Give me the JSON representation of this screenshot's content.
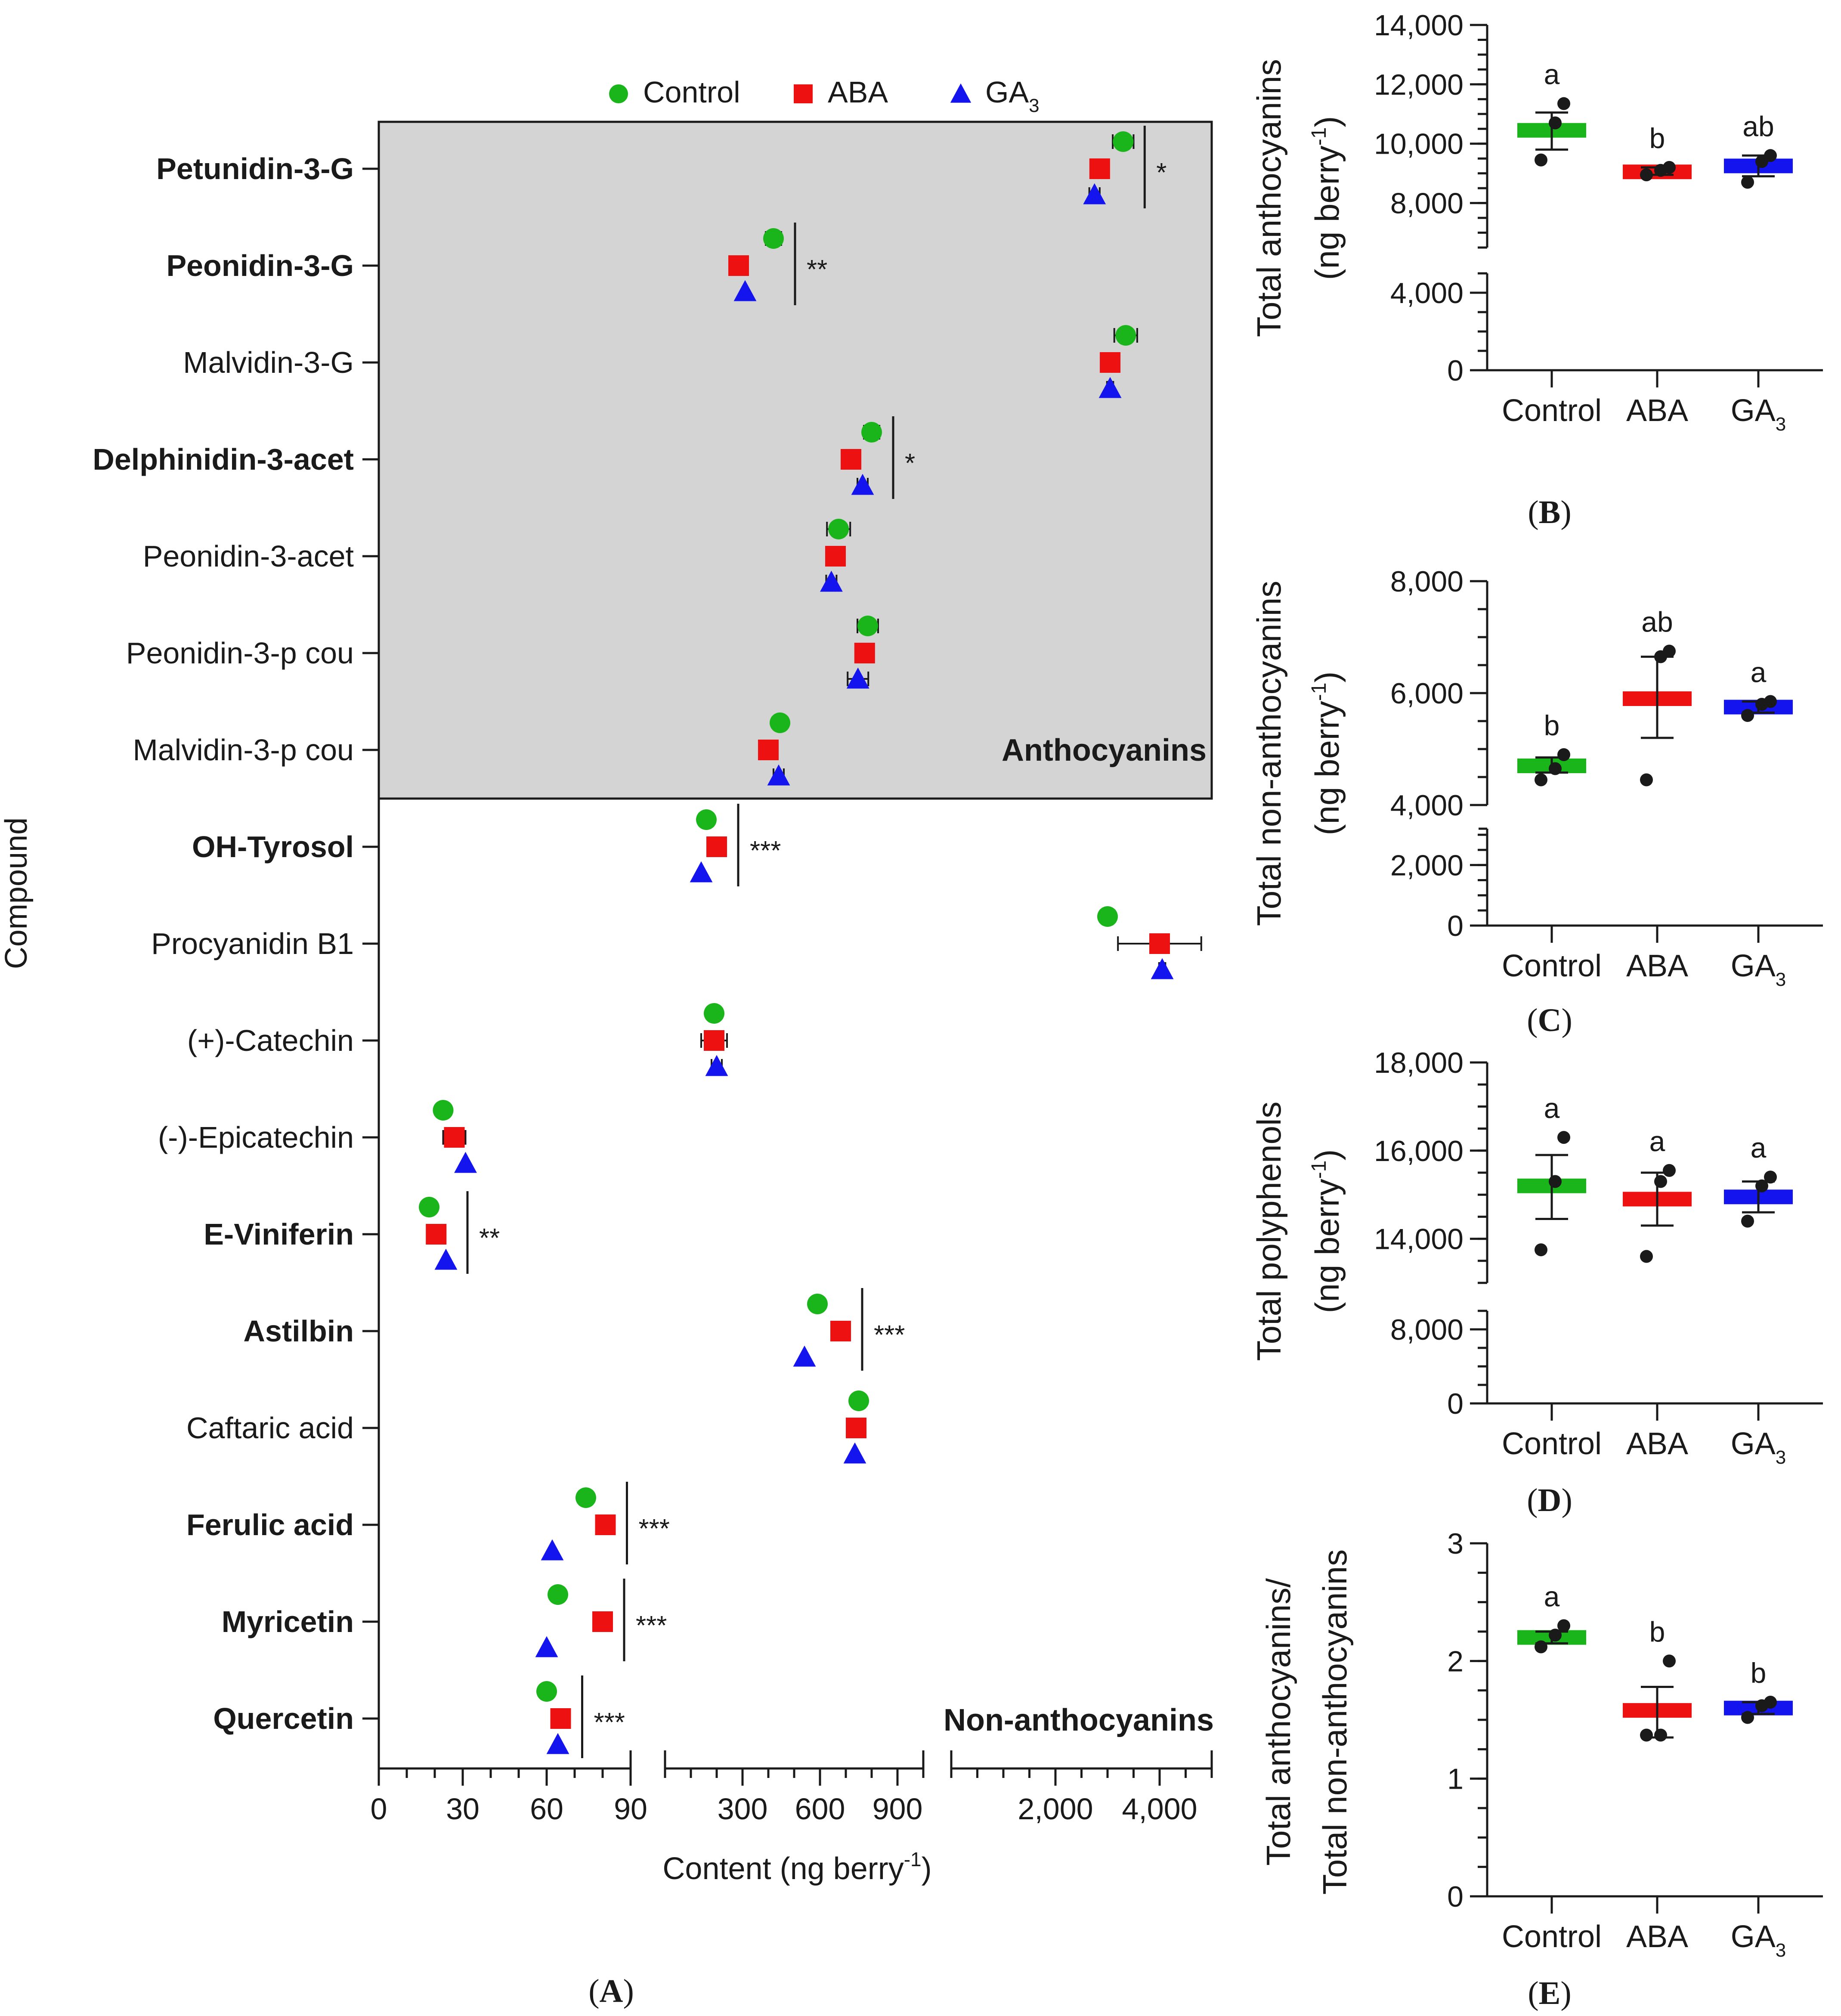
{
  "colors": {
    "control": "#1ab51a",
    "aba": "#ee1111",
    "ga3": "#1414ee",
    "shade": "#d4d4d4"
  },
  "legend": {
    "control": "Control",
    "aba": "ABA",
    "ga3_base": "GA",
    "ga3_sub": "3"
  },
  "chart_data": [
    {
      "panel": "A",
      "type": "scatter",
      "orientation": "horizontal",
      "panel_label": "(A)",
      "panel_label_parts": [
        "(",
        "A",
        ")"
      ],
      "ylabel": "Compound",
      "xlabel": "Content (ng berry-1)",
      "xlabel_parts": {
        "main": "Content (ng berry",
        "sup": "-1",
        "end": ")"
      },
      "x_axis_segments": [
        {
          "range": [
            0,
            90
          ],
          "ticks": [
            0,
            30,
            60,
            90
          ],
          "tick_labels": [
            "0",
            "30",
            "60",
            "90"
          ]
        },
        {
          "range": [
            0,
            1000
          ],
          "ticks": [
            300,
            600,
            900
          ],
          "tick_labels": [
            "300",
            "600",
            "900"
          ]
        },
        {
          "range": [
            0,
            5000
          ],
          "ticks": [
            2000,
            4000
          ],
          "tick_labels": [
            "2,000",
            "4,000"
          ]
        }
      ],
      "groups": [
        {
          "name": "Anthocyanins",
          "shaded": true,
          "compounds": [
            {
              "name": "Petunidin-3-G",
              "bold": true,
              "sig": "*",
              "seg": 2,
              "control": 3300,
              "aba": 2850,
              "ga3": 2750,
              "err": [
                200,
                60,
                100
              ]
            },
            {
              "name": "Peonidin-3-G",
              "bold": true,
              "sig": "**",
              "seg": 1,
              "control": 420,
              "aba": 285,
              "ga3": 310,
              "err": [
                30,
                0,
                0
              ]
            },
            {
              "name": "Malvidin-3-G",
              "bold": false,
              "sig": "",
              "seg": 2,
              "control": 3350,
              "aba": 3050,
              "ga3": 3050,
              "err": [
                220,
                60,
                60
              ]
            },
            {
              "name": "Delphinidin-3-acet",
              "bold": true,
              "sig": "*",
              "seg": 1,
              "control": 800,
              "aba": 720,
              "ga3": 765,
              "err": [
                30,
                0,
                20
              ]
            },
            {
              "name": "Peonidin-3-acet",
              "bold": false,
              "sig": "",
              "seg": 1,
              "control": 672,
              "aba": 660,
              "ga3": 644,
              "err": [
                45,
                0,
                20
              ]
            },
            {
              "name": "Peonidin-3-p cou",
              "bold": false,
              "sig": "",
              "seg": 1,
              "control": 785,
              "aba": 773,
              "ga3": 747,
              "err": [
                40,
                0,
                40
              ]
            },
            {
              "name": "Malvidin-3-p cou",
              "bold": false,
              "sig": "",
              "seg": 1,
              "control": 445,
              "aba": 400,
              "ga3": 440,
              "err": [
                20,
                0,
                20
              ]
            }
          ]
        },
        {
          "name": "Non-anthocyanins",
          "shaded": false,
          "compounds": [
            {
              "name": "OH-Tyrosol",
              "bold": true,
              "sig": "***",
              "seg": 1,
              "control": 160,
              "aba": 200,
              "ga3": 140,
              "err": [
                0,
                0,
                0
              ]
            },
            {
              "name": "Procyanidin B1",
              "bold": false,
              "sig": "",
              "seg": 2,
              "control": 3000,
              "aba": 4000,
              "ga3": 4050,
              "err": [
                80,
                800,
                60
              ]
            },
            {
              "name": "(+)-Catechin",
              "bold": false,
              "sig": "",
              "seg": 1,
              "control": 190,
              "aba": 190,
              "ga3": 200,
              "err": [
                0,
                50,
                20
              ]
            },
            {
              "name": "(-)-Epicatechin",
              "bold": false,
              "sig": "",
              "seg": 0,
              "control": 23,
              "aba": 27,
              "ga3": 31,
              "err": [
                0,
                4,
                0
              ]
            },
            {
              "name": "E-Viniferin",
              "bold": true,
              "sig": "**",
              "seg": 0,
              "control": 18,
              "aba": 20.5,
              "ga3": 24,
              "err": [
                0,
                0,
                0
              ]
            },
            {
              "name": "Astilbin",
              "bold": true,
              "sig": "***",
              "seg": 1,
              "control": 590,
              "aba": 680,
              "ga3": 540,
              "err": [
                0,
                0,
                0
              ]
            },
            {
              "name": "Caftaric acid",
              "bold": false,
              "sig": "",
              "seg": 1,
              "control": 750,
              "aba": 740,
              "ga3": 735,
              "err": [
                20,
                0,
                0
              ]
            },
            {
              "name": "Ferulic acid",
              "bold": true,
              "sig": "***",
              "seg": 0,
              "control": 74,
              "aba": 81,
              "ga3": 62,
              "err": [
                2,
                0,
                0
              ]
            },
            {
              "name": "Myricetin",
              "bold": true,
              "sig": "***",
              "seg": 0,
              "control": 64,
              "aba": 80,
              "ga3": 60,
              "err": [
                0,
                0,
                0
              ]
            },
            {
              "name": "Quercetin",
              "bold": true,
              "sig": "***",
              "seg": 0,
              "control": 60,
              "aba": 65,
              "ga3": 64,
              "err": [
                0,
                0,
                0
              ]
            }
          ]
        }
      ]
    },
    {
      "panel": "B",
      "type": "scatter",
      "panel_label": "(B)",
      "panel_label_parts": [
        "(",
        "B",
        ")"
      ],
      "ylabel_lines": [
        "Total anthocyanins",
        "(ng berry-1)"
      ],
      "ylabel_parts": {
        "line1": "Total anthocyanins",
        "main": "(ng berry",
        "sup": "-1",
        "end": ")"
      },
      "categories": [
        "Control",
        "ABA",
        "GA3"
      ],
      "category_parts": [
        {
          "base": "Control",
          "sub": ""
        },
        {
          "base": "ABA",
          "sub": ""
        },
        {
          "base": "GA",
          "sub": "3"
        }
      ],
      "broken_y": {
        "lower": [
          0,
          5000
        ],
        "upper": [
          6500,
          14000
        ],
        "lower_ticks": [
          0,
          4000
        ],
        "lower_tick_labels": [
          "0",
          "4,000"
        ],
        "upper_ticks": [
          8000,
          10000,
          12000,
          14000
        ],
        "upper_tick_labels": [
          "8,000",
          "10,000",
          "12,000",
          "14,000"
        ]
      },
      "means": [
        10450,
        9050,
        9250
      ],
      "errors": [
        [
          9800,
          11050
        ],
        [
          8950,
          9200
        ],
        [
          8900,
          9600
        ]
      ],
      "points": [
        [
          9450,
          10700,
          11350
        ],
        [
          8950,
          9100,
          9200
        ],
        [
          8700,
          9400,
          9600
        ]
      ],
      "letters": [
        "a",
        "b",
        "ab"
      ]
    },
    {
      "panel": "C",
      "type": "scatter",
      "panel_label": "(C)",
      "panel_label_parts": [
        "(",
        "C",
        ")"
      ],
      "ylabel_lines": [
        "Total non-anthocyanins",
        "(ng berry-1)"
      ],
      "ylabel_parts": {
        "line1": "Total non-anthocyanins",
        "main": "(ng berry",
        "sup": "-1",
        "end": ")"
      },
      "categories": [
        "Control",
        "ABA",
        "GA3"
      ],
      "category_parts": [
        {
          "base": "Control",
          "sub": ""
        },
        {
          "base": "ABA",
          "sub": ""
        },
        {
          "base": "GA",
          "sub": "3"
        }
      ],
      "broken_y": {
        "lower": [
          0,
          3200
        ],
        "upper": [
          4000,
          8000
        ],
        "lower_ticks": [
          0,
          2000
        ],
        "lower_tick_labels": [
          "0",
          "2,000"
        ],
        "upper_ticks": [
          4000,
          6000,
          8000
        ],
        "upper_tick_labels": [
          "4,000",
          "6,000",
          "8,000"
        ]
      },
      "means": [
        4700,
        5900,
        5750
      ],
      "errors": [
        [
          4580,
          4850
        ],
        [
          5200,
          6650
        ],
        [
          5650,
          5850
        ]
      ],
      "points": [
        [
          4450,
          4650,
          4900
        ],
        [
          4450,
          6650,
          6750
        ],
        [
          5600,
          5800,
          5850
        ]
      ],
      "letters": [
        "b",
        "ab",
        "a"
      ]
    },
    {
      "panel": "D",
      "type": "scatter",
      "panel_label": "(D)",
      "panel_label_parts": [
        "(",
        "D",
        ")"
      ],
      "ylabel_lines": [
        "Total polyphenols",
        "(ng berry-1)"
      ],
      "ylabel_parts": {
        "line1": "Total polyphenols",
        "main": "(ng berry",
        "sup": "-1",
        "end": ")"
      },
      "categories": [
        "Control",
        "ABA",
        "GA3"
      ],
      "category_parts": [
        {
          "base": "Control",
          "sub": ""
        },
        {
          "base": "ABA",
          "sub": ""
        },
        {
          "base": "GA",
          "sub": "3"
        }
      ],
      "broken_y": {
        "lower": [
          0,
          10000
        ],
        "upper": [
          13000,
          18000
        ],
        "lower_ticks": [
          0,
          8000
        ],
        "lower_tick_labels": [
          "0",
          "8,000"
        ],
        "upper_ticks": [
          14000,
          16000,
          18000
        ],
        "upper_tick_labels": [
          "14,000",
          "16,000",
          "18,000"
        ]
      },
      "means": [
        15200,
        14900,
        14950
      ],
      "errors": [
        [
          14450,
          15900
        ],
        [
          14300,
          15500
        ],
        [
          14600,
          15300
        ]
      ],
      "points": [
        [
          13750,
          15300,
          16300
        ],
        [
          13600,
          15300,
          15550
        ],
        [
          14400,
          15200,
          15400
        ]
      ],
      "letters": [
        "a",
        "a",
        "a"
      ]
    },
    {
      "panel": "E",
      "type": "scatter",
      "panel_label": "(E)",
      "panel_label_parts": [
        "(",
        "E",
        ")"
      ],
      "ylabel_lines": [
        "Total anthocyanins/",
        "Total non-anthocyanins"
      ],
      "categories": [
        "Control",
        "ABA",
        "GA3"
      ],
      "category_parts": [
        {
          "base": "Control",
          "sub": ""
        },
        {
          "base": "ABA",
          "sub": ""
        },
        {
          "base": "GA",
          "sub": "3"
        }
      ],
      "ylim": [
        0,
        3
      ],
      "yticks": [
        0,
        1,
        2,
        3
      ],
      "ytick_labels": [
        "0",
        "1",
        "2",
        "3"
      ],
      "means": [
        2.2,
        1.58,
        1.6
      ],
      "errors": [
        [
          2.15,
          2.25
        ],
        [
          1.35,
          1.78
        ],
        [
          1.55,
          1.65
        ]
      ],
      "points": [
        [
          2.12,
          2.22,
          2.3
        ],
        [
          1.37,
          1.37,
          2.0
        ],
        [
          1.52,
          1.62,
          1.65
        ]
      ],
      "letters": [
        "a",
        "b",
        "b"
      ]
    }
  ]
}
